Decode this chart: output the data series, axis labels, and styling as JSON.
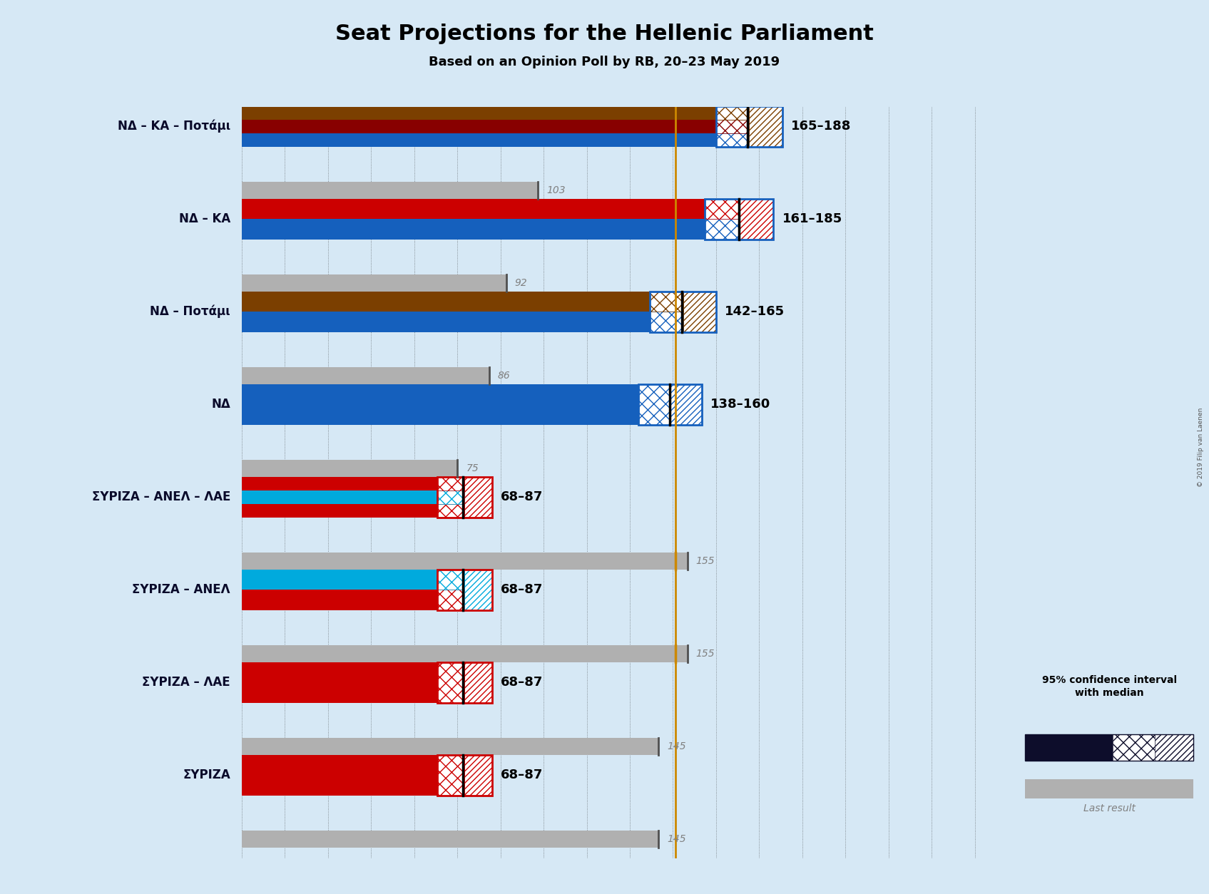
{
  "title": "Seat Projections for the Hellenic Parliament",
  "subtitle": "Based on an Opinion Poll by RB, 20–23 May 2019",
  "copyright": "© 2019 Filip van Laenen",
  "background_color": "#d6e8f5",
  "majority_line": 151,
  "coalitions": [
    {
      "label": "ΝΔ – ΚΑ – Ποτάμι",
      "ci_low": 165,
      "ci_high": 188,
      "median": 176,
      "last_result": 103,
      "colors": [
        "#1560bd",
        "#880000",
        "#7b3f00"
      ],
      "label_text": "165–188",
      "last_text": "103",
      "underline": false
    },
    {
      "label": "ΝΔ – ΚΑ",
      "ci_low": 161,
      "ci_high": 185,
      "median": 173,
      "last_result": 92,
      "colors": [
        "#1560bd",
        "#cc0000"
      ],
      "label_text": "161–185",
      "last_text": "92",
      "underline": false
    },
    {
      "label": "ΝΔ – Ποτάμι",
      "ci_low": 142,
      "ci_high": 165,
      "median": 153,
      "last_result": 86,
      "colors": [
        "#1560bd",
        "#7b3f00"
      ],
      "label_text": "142–165",
      "last_text": "86",
      "underline": false
    },
    {
      "label": "ΝΔ",
      "ci_low": 138,
      "ci_high": 160,
      "median": 149,
      "last_result": 75,
      "colors": [
        "#1560bd"
      ],
      "label_text": "138–160",
      "last_text": "75",
      "underline": false
    },
    {
      "label": "ΣΥΡΙΖΑ – ΑΝΕΛ – ΛΑΕ",
      "ci_low": 68,
      "ci_high": 87,
      "median": 77,
      "last_result": 155,
      "colors": [
        "#cc0000",
        "#00aadd",
        "#cc0000"
      ],
      "label_text": "68–87",
      "last_text": "155",
      "underline": false
    },
    {
      "label": "ΣΥΡΙΖΑ – ΑΝΕΛ",
      "ci_low": 68,
      "ci_high": 87,
      "median": 77,
      "last_result": 155,
      "colors": [
        "#cc0000",
        "#00aadd"
      ],
      "label_text": "68–87",
      "last_text": "155",
      "underline": false
    },
    {
      "label": "ΣΥΡΙΖΑ – ΛΑΕ",
      "ci_low": 68,
      "ci_high": 87,
      "median": 77,
      "last_result": 145,
      "colors": [
        "#cc0000"
      ],
      "label_text": "68–87",
      "last_text": "145",
      "underline": false
    },
    {
      "label": "ΣΥΡΙΖΑ",
      "ci_low": 68,
      "ci_high": 87,
      "median": 77,
      "last_result": 145,
      "colors": [
        "#cc0000"
      ],
      "label_text": "68–87",
      "last_text": "145",
      "underline": true
    }
  ]
}
